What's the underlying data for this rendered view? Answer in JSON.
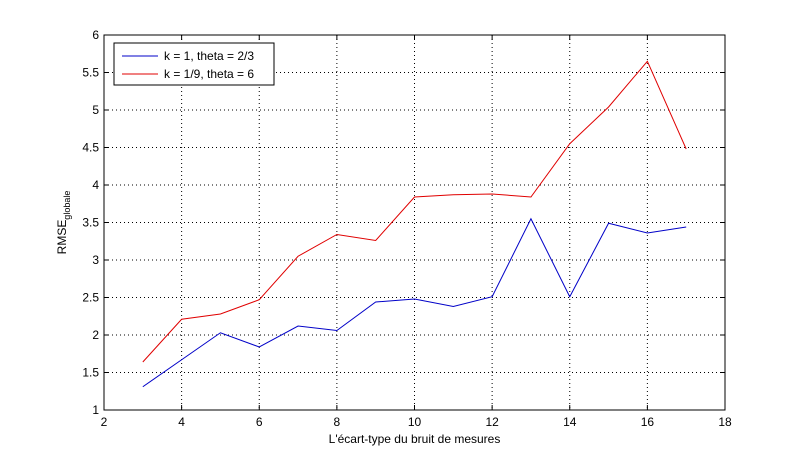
{
  "chart_data": {
    "type": "line",
    "title": "",
    "xlabel": "L'écart-type du bruit de mesures",
    "ylabel_main": "RMSE",
    "ylabel_sub": "globale",
    "xlim": [
      2,
      18
    ],
    "ylim": [
      1,
      6
    ],
    "xticks": [
      2,
      4,
      6,
      8,
      10,
      12,
      14,
      16,
      18
    ],
    "yticks": [
      1,
      1.5,
      2,
      2.5,
      3,
      3.5,
      4,
      4.5,
      5,
      5.5,
      6
    ],
    "grid": true,
    "legend_position": "top-left",
    "x": [
      3,
      4,
      5,
      6,
      7,
      8,
      9,
      10,
      11,
      12,
      13,
      14,
      15,
      16,
      17
    ],
    "series": [
      {
        "name": "k = 1, theta = 2/3",
        "color": "#0000c8",
        "values": [
          1.31,
          1.67,
          2.03,
          1.84,
          2.12,
          2.06,
          2.44,
          2.48,
          2.38,
          2.51,
          3.55,
          2.51,
          3.49,
          3.36,
          3.44
        ]
      },
      {
        "name": "k = 1/9, theta = 6",
        "color": "#e00000",
        "values": [
          1.64,
          2.21,
          2.28,
          2.47,
          3.05,
          3.34,
          3.26,
          3.84,
          3.87,
          3.88,
          3.84,
          4.55,
          5.04,
          5.65,
          4.48
        ]
      }
    ]
  }
}
